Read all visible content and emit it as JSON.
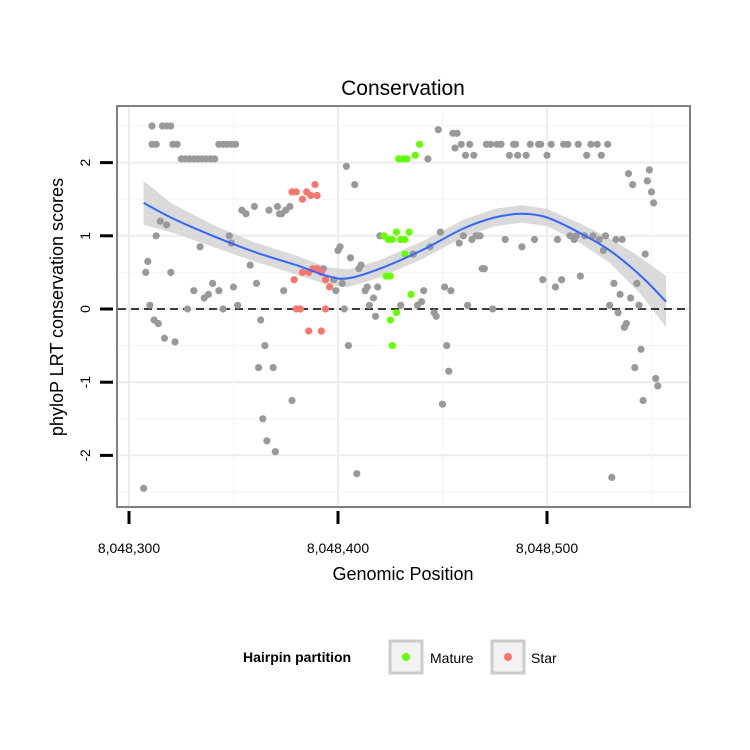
{
  "chart_data": {
    "type": "scatter",
    "title": "Conservation",
    "xlabel": "Genomic Position",
    "ylabel": "phyloP LRT conservation scores",
    "xlim": [
      8048304,
      8048570
    ],
    "ylim": [
      -2.7,
      2.7
    ],
    "x_ticks": [
      8048300,
      8048400,
      8048500
    ],
    "x_tick_labels": [
      "8,048,300",
      "8,048,400",
      "8,048,500"
    ],
    "y_ticks": [
      -2,
      -1,
      0,
      1,
      2
    ],
    "y_tick_labels": [
      "-2",
      "-1",
      "0",
      "1",
      "2"
    ],
    "grid": true,
    "reference_line": {
      "y": 0,
      "style": "dashed"
    },
    "legend": {
      "title": "Hairpin partition",
      "position": "bottom",
      "entries": [
        {
          "label": "Mature",
          "color": "#66ff00"
        },
        {
          "label": "Star",
          "color": "#f8766d"
        }
      ]
    },
    "colors": {
      "other": "#999999",
      "mature": "#66ff00",
      "star": "#f8766d",
      "smooth": "#3366ff",
      "band": "#d4d4d4"
    },
    "series": [
      {
        "name": "Other",
        "points": [
          [
            8048308,
            0.5
          ],
          [
            8048309,
            0.65
          ],
          [
            8048310,
            0.05
          ],
          [
            8048307,
            -2.45
          ],
          [
            8048311,
            2.5
          ],
          [
            8048311,
            2.25
          ],
          [
            8048313,
            2.25
          ],
          [
            8048316,
            2.5
          ],
          [
            8048318,
            2.5
          ],
          [
            8048320,
            2.5
          ],
          [
            8048321,
            2.25
          ],
          [
            8048323,
            2.25
          ],
          [
            8048325,
            2.05
          ],
          [
            8048327,
            2.05
          ],
          [
            8048329,
            2.05
          ],
          [
            8048331,
            2.05
          ],
          [
            8048333,
            2.05
          ],
          [
            8048335,
            2.05
          ],
          [
            8048337,
            2.05
          ],
          [
            8048339,
            2.05
          ],
          [
            8048341,
            2.05
          ],
          [
            8048343,
            2.25
          ],
          [
            8048345,
            2.25
          ],
          [
            8048347,
            2.25
          ],
          [
            8048349,
            2.25
          ],
          [
            8048351,
            2.25
          ],
          [
            8048312,
            -0.15
          ],
          [
            8048314,
            -0.2
          ],
          [
            8048313,
            1.0
          ],
          [
            8048315,
            1.2
          ],
          [
            8048318,
            1.15
          ],
          [
            8048317,
            -0.4
          ],
          [
            8048320,
            0.5
          ],
          [
            8048322,
            -0.45
          ],
          [
            8048328,
            0.0
          ],
          [
            8048331,
            0.25
          ],
          [
            8048334,
            0.85
          ],
          [
            8048336,
            0.15
          ],
          [
            8048338,
            0.2
          ],
          [
            8048340,
            0.35
          ],
          [
            8048343,
            0.25
          ],
          [
            8048345,
            0.0
          ],
          [
            8048348,
            1.0
          ],
          [
            8048349,
            0.9
          ],
          [
            8048350,
            0.3
          ],
          [
            8048352,
            0.05
          ],
          [
            8048354,
            1.35
          ],
          [
            8048356,
            1.3
          ],
          [
            8048358,
            0.6
          ],
          [
            8048360,
            1.4
          ],
          [
            8048361,
            0.35
          ],
          [
            8048363,
            -0.15
          ],
          [
            8048362,
            -0.8
          ],
          [
            8048365,
            -0.5
          ],
          [
            8048366,
            -1.8
          ],
          [
            8048367,
            1.35
          ],
          [
            8048369,
            -0.8
          ],
          [
            8048370,
            -1.95
          ],
          [
            8048371,
            1.4
          ],
          [
            8048372,
            1.3
          ],
          [
            8048373,
            1.3
          ],
          [
            8048375,
            1.35
          ],
          [
            8048377,
            1.4
          ],
          [
            8048378,
            -1.25
          ],
          [
            8048364,
            -1.5
          ],
          [
            8048374,
            0.25
          ],
          [
            8048393,
            0.55
          ],
          [
            8048398,
            0.4
          ],
          [
            8048399,
            0.25
          ],
          [
            8048400,
            0.8
          ],
          [
            8048401,
            0.85
          ],
          [
            8048402,
            0.35
          ],
          [
            8048403,
            0.0
          ],
          [
            8048404,
            1.95
          ],
          [
            8048405,
            -0.5
          ],
          [
            8048406,
            0.7
          ],
          [
            8048408,
            1.7
          ],
          [
            8048409,
            -2.25
          ],
          [
            8048410,
            0.55
          ],
          [
            8048411,
            0.6
          ],
          [
            8048413,
            0.25
          ],
          [
            8048414,
            0.3
          ],
          [
            8048415,
            0.05
          ],
          [
            8048417,
            0.15
          ],
          [
            8048418,
            -0.1
          ],
          [
            8048419,
            0.3
          ],
          [
            8048420,
            1.0
          ],
          [
            8048430,
            0.05
          ],
          [
            8048436,
            0.75
          ],
          [
            8048438,
            0.05
          ],
          [
            8048440,
            0.1
          ],
          [
            8048441,
            0.25
          ],
          [
            8048443,
            2.05
          ],
          [
            8048444,
            0.85
          ],
          [
            8048446,
            -0.05
          ],
          [
            8048447,
            -0.1
          ],
          [
            8048449,
            1.05
          ],
          [
            8048450,
            -1.3
          ],
          [
            8048451,
            0.3
          ],
          [
            8048452,
            -0.5
          ],
          [
            8048453,
            -0.85
          ],
          [
            8048454,
            0.25
          ],
          [
            8048456,
            2.2
          ],
          [
            8048448,
            2.45
          ],
          [
            8048455,
            2.4
          ],
          [
            8048457,
            2.4
          ],
          [
            8048459,
            2.25
          ],
          [
            8048461,
            2.1
          ],
          [
            8048463,
            2.25
          ],
          [
            8048465,
            2.1
          ],
          [
            8048458,
            0.9
          ],
          [
            8048460,
            1.0
          ],
          [
            8048462,
            0.05
          ],
          [
            8048464,
            0.95
          ],
          [
            8048466,
            1.0
          ],
          [
            8048467,
            1.0
          ],
          [
            8048468,
            1.0
          ],
          [
            8048469,
            0.55
          ],
          [
            8048470,
            0.55
          ],
          [
            8048471,
            2.25
          ],
          [
            8048473,
            2.25
          ],
          [
            8048474,
            0.0
          ],
          [
            8048476,
            2.25
          ],
          [
            8048478,
            2.25
          ],
          [
            8048480,
            0.95
          ],
          [
            8048482,
            2.1
          ],
          [
            8048484,
            2.25
          ],
          [
            8048485,
            2.25
          ],
          [
            8048486,
            2.1
          ],
          [
            8048488,
            0.85
          ],
          [
            8048490,
            2.1
          ],
          [
            8048492,
            2.25
          ],
          [
            8048494,
            0.95
          ],
          [
            8048496,
            2.25
          ],
          [
            8048497,
            2.25
          ],
          [
            8048498,
            0.4
          ],
          [
            8048500,
            2.1
          ],
          [
            8048502,
            2.25
          ],
          [
            8048504,
            0.3
          ],
          [
            8048505,
            0.95
          ],
          [
            8048507,
            0.4
          ],
          [
            8048508,
            2.25
          ],
          [
            8048510,
            2.25
          ],
          [
            8048511,
            1.0
          ],
          [
            8048513,
            0.95
          ],
          [
            8048514,
            1.0
          ],
          [
            8048515,
            2.25
          ],
          [
            8048516,
            0.45
          ],
          [
            8048518,
            1.0
          ],
          [
            8048519,
            2.1
          ],
          [
            8048521,
            2.25
          ],
          [
            8048522,
            1.0
          ],
          [
            8048524,
            2.25
          ],
          [
            8048525,
            0.95
          ],
          [
            8048526,
            2.1
          ],
          [
            8048527,
            0.8
          ],
          [
            8048528,
            1.0
          ],
          [
            8048529,
            2.25
          ],
          [
            8048530,
            0.05
          ],
          [
            8048531,
            -2.3
          ],
          [
            8048532,
            0.35
          ],
          [
            8048533,
            0.95
          ],
          [
            8048534,
            -0.05
          ],
          [
            8048535,
            0.2
          ],
          [
            8048536,
            0.95
          ],
          [
            8048537,
            -0.25
          ],
          [
            8048538,
            -0.2
          ],
          [
            8048539,
            1.85
          ],
          [
            8048540,
            0.15
          ],
          [
            8048541,
            1.7
          ],
          [
            8048542,
            -0.8
          ],
          [
            8048544,
            0.05
          ],
          [
            8048545,
            -0.55
          ],
          [
            8048546,
            -1.25
          ],
          [
            8048547,
            0.75
          ],
          [
            8048548,
            1.75
          ],
          [
            8048549,
            1.9
          ],
          [
            8048550,
            1.6
          ],
          [
            8048551,
            1.45
          ],
          [
            8048552,
            -0.95
          ],
          [
            8048553,
            -1.05
          ],
          [
            8048543,
            0.35
          ]
        ]
      },
      {
        "name": "Mature",
        "points": [
          [
            8048422,
            1.0
          ],
          [
            8048424,
            0.95
          ],
          [
            8048426,
            0.95
          ],
          [
            8048428,
            1.05
          ],
          [
            8048430,
            0.95
          ],
          [
            8048432,
            0.95
          ],
          [
            8048434,
            1.05
          ],
          [
            8048429,
            2.05
          ],
          [
            8048431,
            2.05
          ],
          [
            8048433,
            2.05
          ],
          [
            8048439,
            2.25
          ],
          [
            8048437,
            2.1
          ],
          [
            8048423,
            0.45
          ],
          [
            8048425,
            -0.15
          ],
          [
            8048426,
            -0.5
          ],
          [
            8048428,
            -0.05
          ],
          [
            8048435,
            0.2
          ],
          [
            8048432,
            0.75
          ],
          [
            8048425,
            0.45
          ]
        ]
      },
      {
        "name": "Star",
        "points": [
          [
            8048378,
            1.6
          ],
          [
            8048380,
            1.6
          ],
          [
            8048383,
            1.5
          ],
          [
            8048385,
            1.6
          ],
          [
            8048387,
            1.55
          ],
          [
            8048390,
            1.55
          ],
          [
            8048389,
            1.7
          ],
          [
            8048379,
            0.4
          ],
          [
            8048383,
            0.5
          ],
          [
            8048386,
            0.5
          ],
          [
            8048388,
            0.55
          ],
          [
            8048390,
            0.55
          ],
          [
            8048392,
            0.5
          ],
          [
            8048394,
            0.4
          ],
          [
            8048380,
            0.0
          ],
          [
            8048382,
            0.0
          ],
          [
            8048386,
            -0.3
          ],
          [
            8048392,
            -0.3
          ],
          [
            8048394,
            0.0
          ],
          [
            8048396,
            0.3
          ]
        ]
      }
    ],
    "smooth_fit": {
      "x": [
        8048307,
        8048320,
        8048340,
        8048360,
        8048380,
        8048395,
        8048405,
        8048420,
        8048440,
        8048460,
        8048475,
        8048488,
        8048500,
        8048515,
        8048530,
        8048545,
        8048557
      ],
      "y": [
        1.45,
        1.25,
        1.0,
        0.78,
        0.6,
        0.45,
        0.42,
        0.55,
        0.8,
        1.1,
        1.25,
        1.3,
        1.25,
        1.05,
        0.8,
        0.45,
        0.1
      ],
      "band": [
        0.3,
        0.2,
        0.15,
        0.13,
        0.13,
        0.12,
        0.12,
        0.12,
        0.12,
        0.12,
        0.12,
        0.12,
        0.12,
        0.13,
        0.17,
        0.25,
        0.35
      ]
    }
  }
}
